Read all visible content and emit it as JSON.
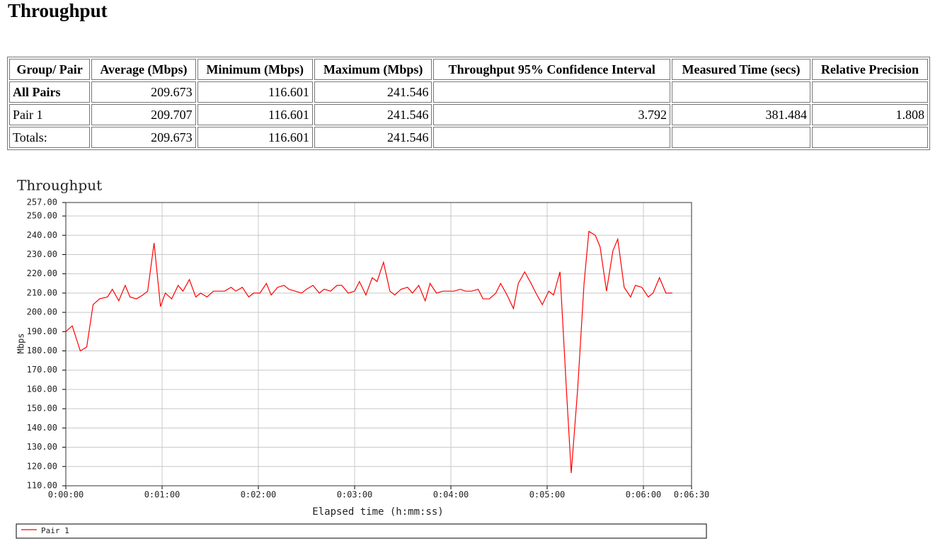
{
  "header": {
    "title": "Throughput"
  },
  "table": {
    "columns": [
      "Group/ Pair",
      "Average (Mbps)",
      "Minimum (Mbps)",
      "Maximum (Mbps)",
      "Throughput 95% Confidence Interval",
      "Measured Time (secs)",
      "Relative Precision"
    ],
    "rows": [
      [
        "All Pairs",
        209.673,
        116.601,
        241.546,
        null,
        null,
        null
      ],
      [
        "Pair 1",
        209.707,
        116.601,
        241.546,
        3.792,
        381.484,
        1.808
      ],
      [
        "Totals:",
        209.673,
        116.601,
        241.546,
        null,
        null,
        null
      ]
    ]
  },
  "chart_data": {
    "type": "line",
    "title": "Throughput",
    "xlabel": "Elapsed time (h:mm:ss)",
    "ylabel": "Mbps",
    "x": [
      0,
      4,
      9,
      13,
      17,
      21,
      26,
      29,
      33,
      37,
      40,
      44,
      48,
      51,
      55,
      59,
      62,
      66,
      70,
      73,
      77,
      81,
      84,
      88,
      92,
      95,
      99,
      103,
      106,
      110,
      114,
      117,
      121,
      125,
      128,
      132,
      136,
      139,
      143,
      147,
      150,
      154,
      158,
      161,
      165,
      169,
      172,
      176,
      180,
      183,
      187,
      191,
      194,
      198,
      202,
      205,
      209,
      213,
      216,
      220,
      224,
      227,
      231,
      235,
      238,
      242,
      246,
      249,
      253,
      257,
      260,
      264,
      268,
      271,
      275,
      279,
      282,
      286,
      290,
      293,
      297,
      301,
      304,
      308,
      312,
      315,
      319,
      323,
      326,
      330,
      333,
      337,
      341,
      344,
      348,
      352,
      355,
      359,
      363,
      366,
      370,
      374,
      378
    ],
    "series": [
      {
        "name": "Pair 1",
        "color": "#ff0000",
        "values": [
          190,
          193,
          180,
          182,
          204,
          207,
          208,
          212,
          206,
          214,
          208,
          207,
          209,
          211,
          236,
          203,
          210,
          207,
          214,
          211,
          217,
          208,
          210,
          208,
          211,
          211,
          211,
          213,
          211,
          213,
          208,
          210,
          210,
          215,
          209,
          213,
          214,
          212,
          211,
          210,
          212,
          214,
          210,
          212,
          211,
          214,
          214,
          210,
          211,
          216,
          209,
          218,
          216,
          226,
          211,
          209,
          212,
          213,
          210,
          214,
          206,
          215,
          210,
          211,
          211,
          211,
          212,
          211,
          211,
          212,
          207,
          207,
          210,
          215,
          209,
          202,
          215,
          221,
          215,
          210,
          204,
          211,
          209,
          221,
          160,
          116.601,
          160,
          215,
          242,
          240,
          234,
          211,
          232,
          238,
          213,
          208,
          214,
          213,
          208,
          210,
          218,
          210,
          210
        ]
      }
    ],
    "xlim": [
      0,
      390
    ],
    "ylim": [
      110,
      257
    ],
    "xticks": [
      {
        "value": 0,
        "label": "0:00:00"
      },
      {
        "value": 60,
        "label": "0:01:00"
      },
      {
        "value": 120,
        "label": "0:02:00"
      },
      {
        "value": 180,
        "label": "0:03:00"
      },
      {
        "value": 240,
        "label": "0:04:00"
      },
      {
        "value": 300,
        "label": "0:05:00"
      },
      {
        "value": 360,
        "label": "0:06:00"
      },
      {
        "value": 390,
        "label": "0:06:30"
      }
    ],
    "yticks": [
      {
        "value": 110,
        "label": "110.00"
      },
      {
        "value": 120,
        "label": "120.00"
      },
      {
        "value": 130,
        "label": "130.00"
      },
      {
        "value": 140,
        "label": "140.00"
      },
      {
        "value": 150,
        "label": "150.00"
      },
      {
        "value": 160,
        "label": "160.00"
      },
      {
        "value": 170,
        "label": "170.00"
      },
      {
        "value": 180,
        "label": "180.00"
      },
      {
        "value": 190,
        "label": "190.00"
      },
      {
        "value": 200,
        "label": "200.00"
      },
      {
        "value": 210,
        "label": "210.00"
      },
      {
        "value": 220,
        "label": "220.00"
      },
      {
        "value": 230,
        "label": "230.00"
      },
      {
        "value": 240,
        "label": "240.00"
      },
      {
        "value": 250,
        "label": "250.00"
      },
      {
        "value": 257,
        "label": "257.00"
      }
    ],
    "grid": true
  }
}
